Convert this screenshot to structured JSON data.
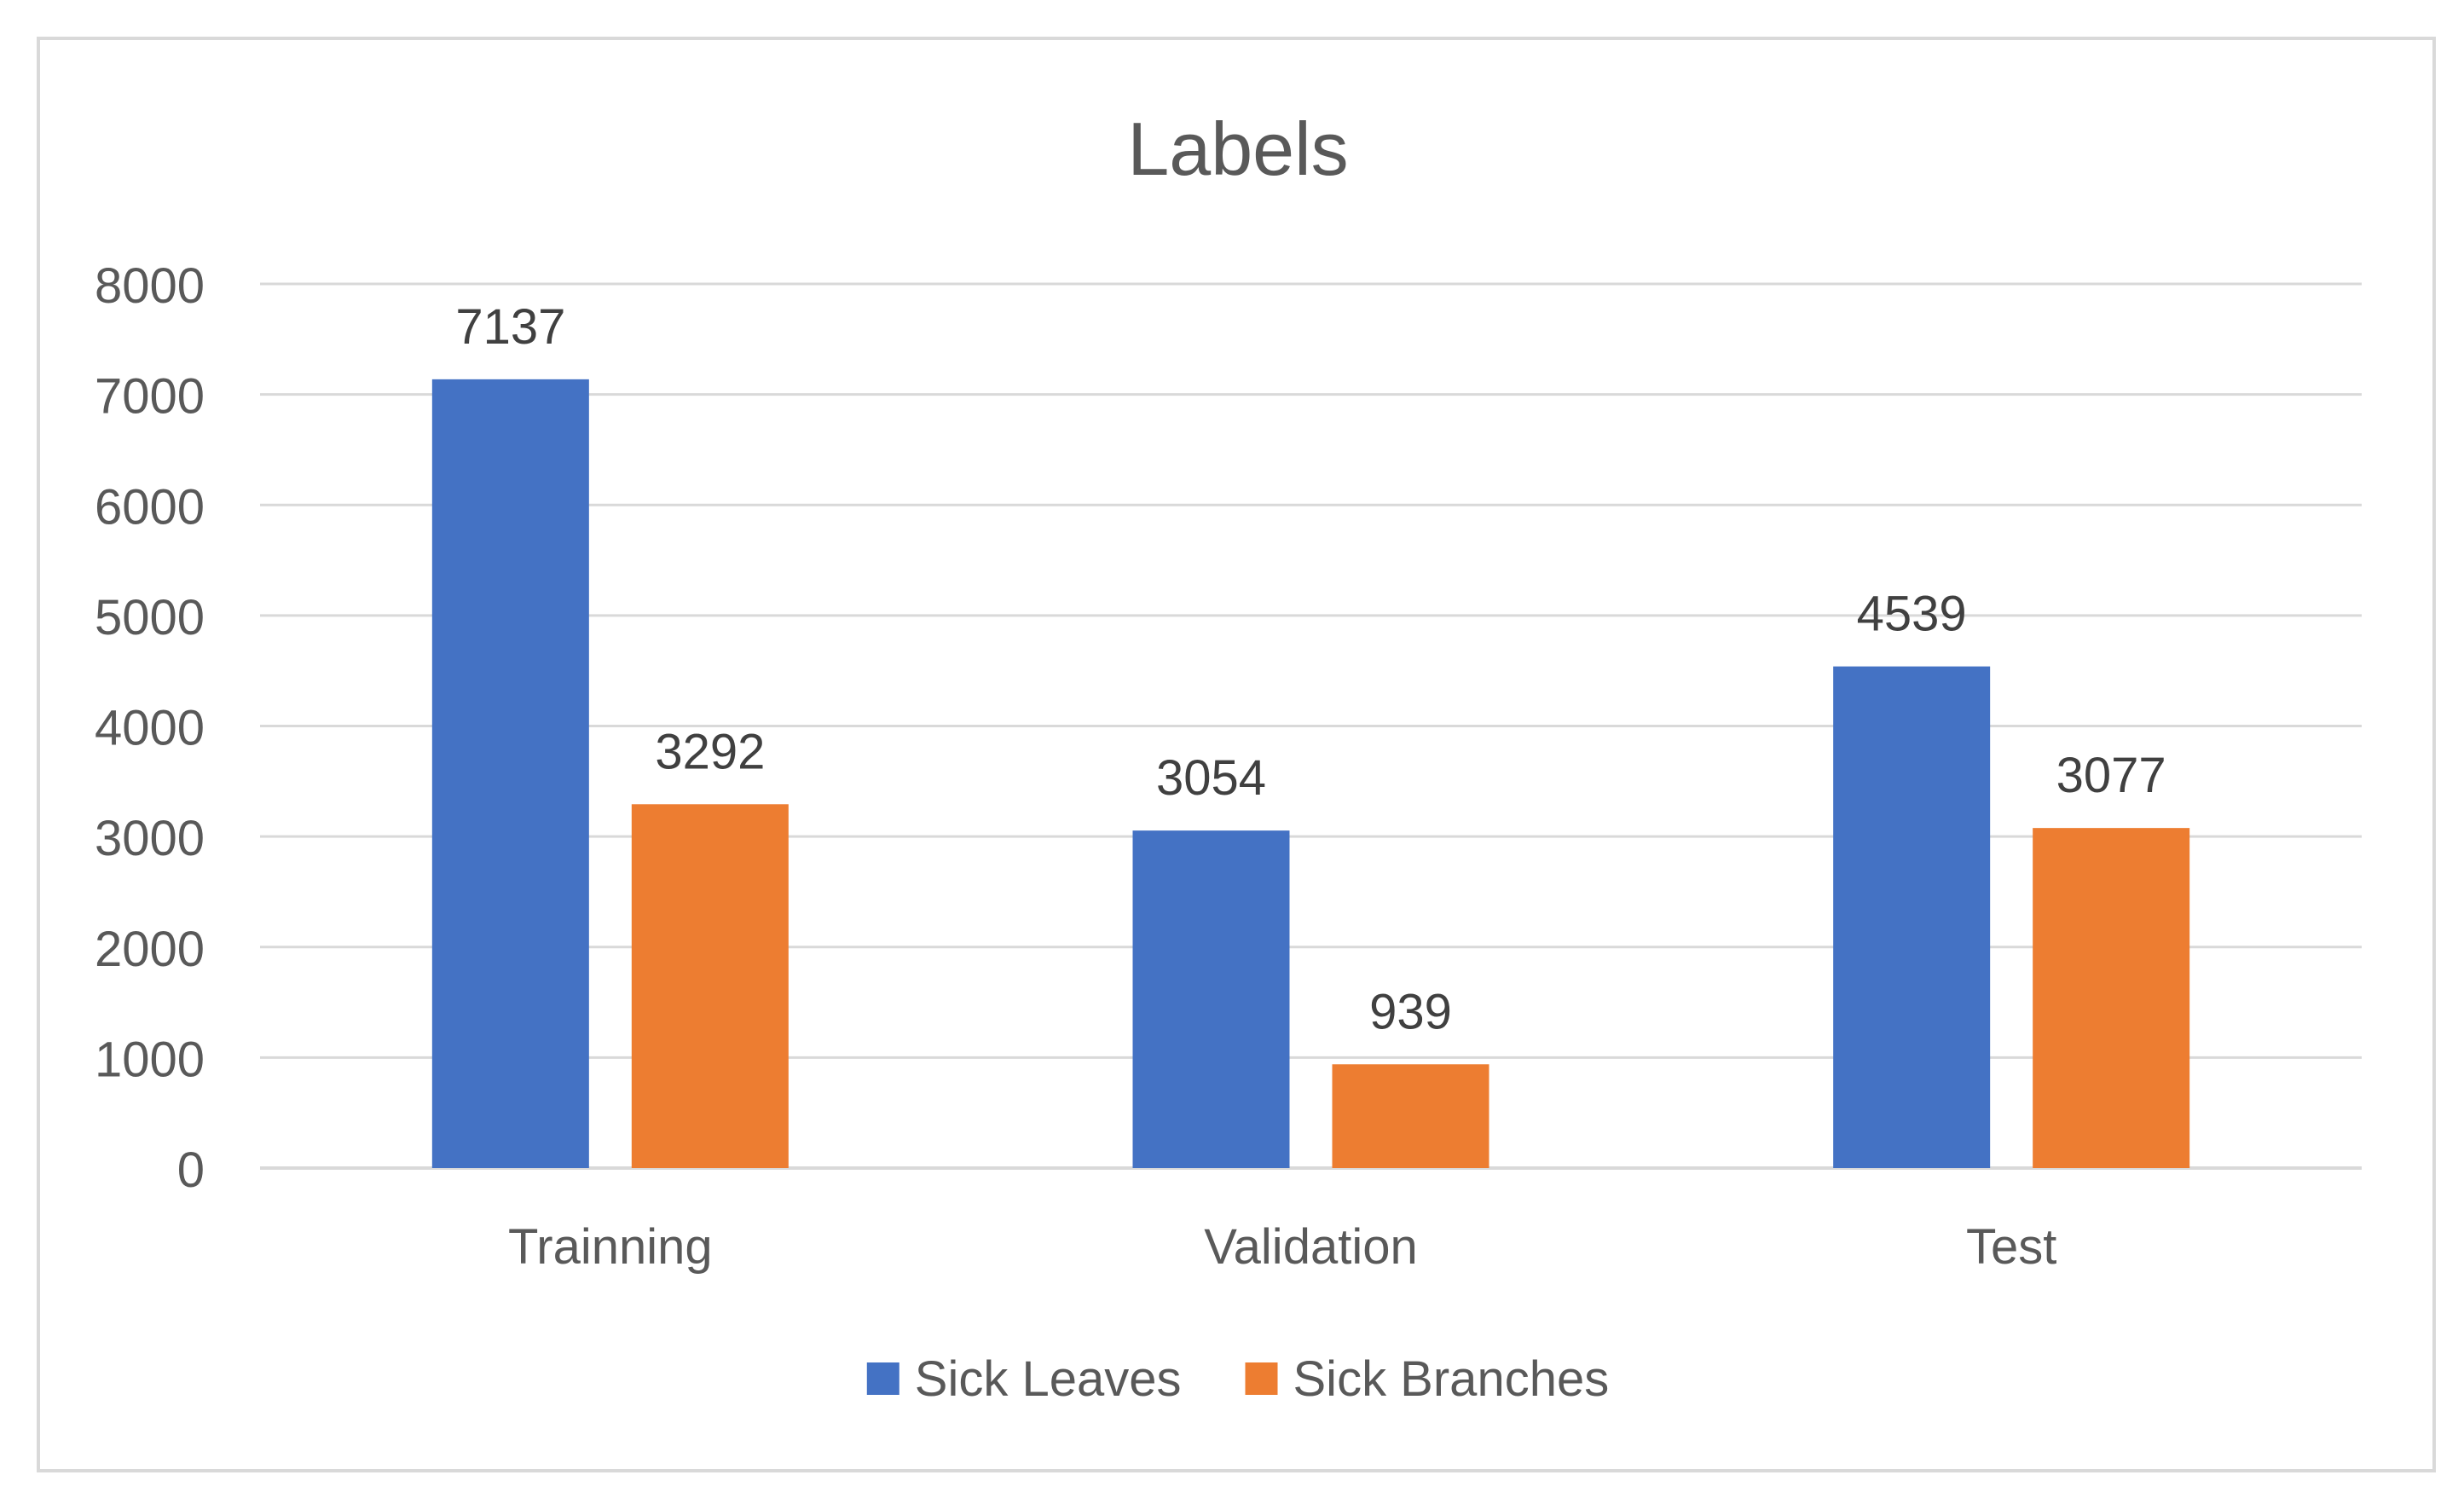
{
  "chart_data": {
    "type": "bar",
    "title": "Labels",
    "xlabel": "",
    "ylabel": "",
    "categories": [
      "Trainning",
      "Validation",
      "Test"
    ],
    "series": [
      {
        "name": "Sick Leaves",
        "color": "#4472C4",
        "values": [
          7137,
          3054,
          4539
        ]
      },
      {
        "name": "Sick Branches",
        "color": "#ED7D31",
        "values": [
          3292,
          939,
          3077
        ]
      }
    ],
    "ylim": [
      0,
      8000
    ],
    "yticks": [
      0,
      1000,
      2000,
      3000,
      4000,
      5000,
      6000,
      7000,
      8000
    ],
    "grid": true,
    "data_labels": true,
    "legend_position": "bottom"
  }
}
